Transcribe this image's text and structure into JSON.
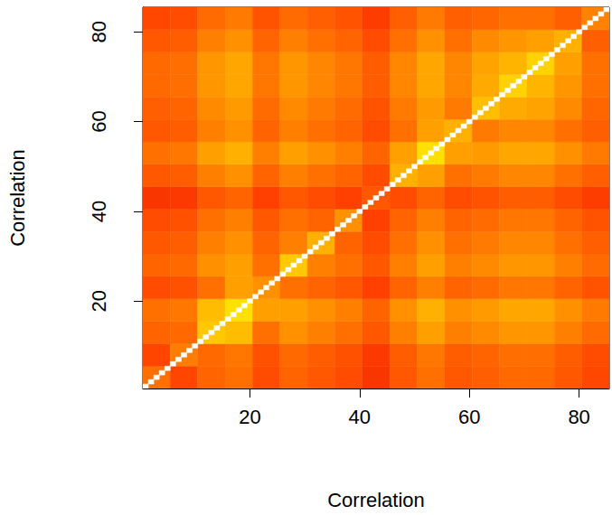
{
  "chart_data": {
    "type": "heatmap",
    "x_label": "Correlation",
    "y_label": "Correlation",
    "xlim": [
      0.5,
      85.5
    ],
    "ylim": [
      0.5,
      85.5
    ],
    "xticks": [
      20,
      40,
      60,
      80
    ],
    "yticks": [
      20,
      40,
      60,
      80
    ],
    "grid": false,
    "color_range": [
      0,
      1
    ],
    "bins": [
      0.5,
      5.5,
      10.5,
      15.5,
      20.5,
      25.5,
      30.5,
      35.5,
      40.5,
      45.5,
      50.5,
      55.5,
      60.5,
      65.5,
      70.5,
      75.5,
      80.5,
      85.5
    ],
    "cells": [
      [
        0.4,
        0.22,
        0.35,
        0.4,
        0.25,
        0.35,
        0.3,
        0.25,
        0.15,
        0.3,
        0.4,
        0.3,
        0.33,
        0.37,
        0.37,
        0.3,
        0.23
      ],
      [
        0.22,
        0.44,
        0.37,
        0.42,
        0.27,
        0.37,
        0.32,
        0.27,
        0.17,
        0.32,
        0.42,
        0.32,
        0.35,
        0.39,
        0.39,
        0.32,
        0.25
      ],
      [
        0.35,
        0.37,
        0.7,
        0.65,
        0.4,
        0.5,
        0.45,
        0.4,
        0.3,
        0.45,
        0.55,
        0.45,
        0.48,
        0.52,
        0.52,
        0.45,
        0.38
      ],
      [
        0.4,
        0.42,
        0.65,
        0.8,
        0.55,
        0.55,
        0.5,
        0.45,
        0.35,
        0.5,
        0.6,
        0.5,
        0.53,
        0.57,
        0.57,
        0.5,
        0.43
      ],
      [
        0.25,
        0.27,
        0.4,
        0.55,
        0.5,
        0.4,
        0.35,
        0.3,
        0.2,
        0.35,
        0.45,
        0.35,
        0.38,
        0.42,
        0.42,
        0.35,
        0.28
      ],
      [
        0.35,
        0.37,
        0.5,
        0.55,
        0.4,
        0.7,
        0.45,
        0.4,
        0.3,
        0.45,
        0.55,
        0.45,
        0.48,
        0.52,
        0.52,
        0.45,
        0.38
      ],
      [
        0.3,
        0.32,
        0.45,
        0.5,
        0.35,
        0.45,
        0.6,
        0.35,
        0.25,
        0.4,
        0.5,
        0.4,
        0.43,
        0.47,
        0.47,
        0.4,
        0.33
      ],
      [
        0.25,
        0.27,
        0.4,
        0.45,
        0.3,
        0.4,
        0.35,
        0.5,
        0.2,
        0.35,
        0.45,
        0.35,
        0.38,
        0.42,
        0.42,
        0.35,
        0.28
      ],
      [
        0.15,
        0.17,
        0.3,
        0.35,
        0.2,
        0.3,
        0.25,
        0.2,
        0.3,
        0.25,
        0.35,
        0.25,
        0.28,
        0.32,
        0.32,
        0.25,
        0.18
      ],
      [
        0.3,
        0.32,
        0.45,
        0.5,
        0.35,
        0.45,
        0.4,
        0.35,
        0.25,
        0.6,
        0.55,
        0.4,
        0.43,
        0.47,
        0.47,
        0.4,
        0.33
      ],
      [
        0.4,
        0.42,
        0.55,
        0.6,
        0.45,
        0.55,
        0.5,
        0.45,
        0.35,
        0.55,
        0.8,
        0.55,
        0.53,
        0.57,
        0.57,
        0.5,
        0.43
      ],
      [
        0.3,
        0.32,
        0.45,
        0.5,
        0.35,
        0.45,
        0.4,
        0.35,
        0.25,
        0.4,
        0.55,
        0.6,
        0.43,
        0.47,
        0.47,
        0.4,
        0.33
      ],
      [
        0.33,
        0.35,
        0.48,
        0.53,
        0.38,
        0.48,
        0.43,
        0.38,
        0.28,
        0.43,
        0.53,
        0.43,
        0.66,
        0.58,
        0.56,
        0.48,
        0.36
      ],
      [
        0.37,
        0.39,
        0.52,
        0.57,
        0.42,
        0.52,
        0.47,
        0.42,
        0.32,
        0.47,
        0.57,
        0.47,
        0.58,
        0.74,
        0.62,
        0.52,
        0.4
      ],
      [
        0.37,
        0.39,
        0.52,
        0.57,
        0.42,
        0.52,
        0.47,
        0.42,
        0.32,
        0.47,
        0.57,
        0.47,
        0.56,
        0.62,
        0.74,
        0.55,
        0.4
      ],
      [
        0.3,
        0.32,
        0.45,
        0.5,
        0.35,
        0.45,
        0.4,
        0.35,
        0.25,
        0.4,
        0.5,
        0.4,
        0.48,
        0.52,
        0.55,
        0.6,
        0.33
      ],
      [
        0.23,
        0.25,
        0.38,
        0.43,
        0.28,
        0.38,
        0.33,
        0.28,
        0.18,
        0.33,
        0.43,
        0.33,
        0.36,
        0.4,
        0.4,
        0.33,
        0.46
      ]
    ],
    "diagonal": [
      1,
      1,
      1,
      1,
      1,
      1,
      1,
      1,
      1,
      1,
      1,
      1,
      1,
      1,
      1,
      1,
      1,
      1,
      1,
      1,
      1,
      1,
      1,
      1,
      1,
      1,
      1,
      1,
      1,
      1,
      1,
      1,
      1,
      1,
      1,
      1,
      1,
      1,
      1,
      1,
      1,
      1,
      1,
      1,
      1,
      1,
      1,
      1,
      1,
      1,
      1,
      1,
      1,
      1,
      1,
      1,
      1,
      1,
      1,
      1,
      1,
      1,
      1,
      1,
      1,
      1,
      1,
      1,
      1,
      1,
      1,
      1,
      1,
      1,
      1,
      1,
      1,
      1,
      1,
      1,
      1,
      1,
      1,
      1,
      1
    ]
  }
}
